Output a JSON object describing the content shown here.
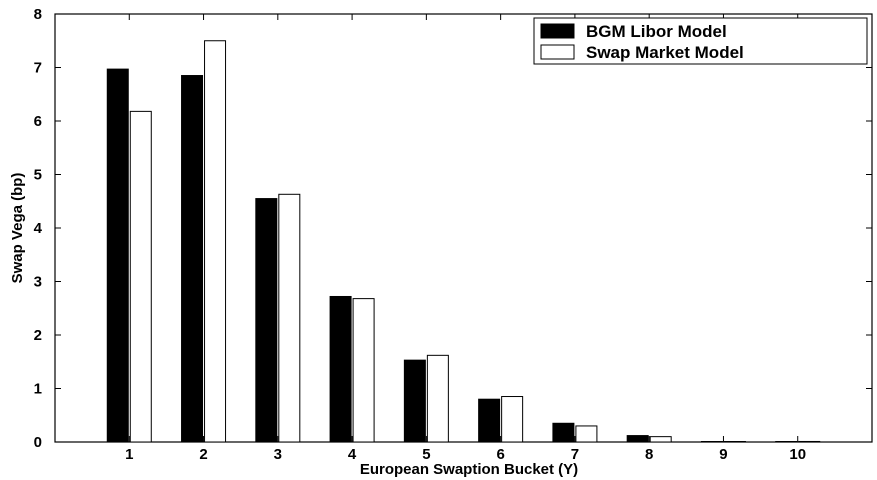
{
  "chart_data": {
    "type": "bar",
    "title": "",
    "xlabel": "European Swaption Bucket (Y)",
    "ylabel": "Swap Vega (bp)",
    "categories": [
      "1",
      "2",
      "3",
      "4",
      "5",
      "6",
      "7",
      "8",
      "9",
      "10"
    ],
    "xlim": [
      0,
      11
    ],
    "ylim": [
      0,
      8
    ],
    "yticks": [
      "0",
      "1",
      "2",
      "3",
      "4",
      "5",
      "6",
      "7",
      "8"
    ],
    "grid": false,
    "legend_position": "top-right",
    "series": [
      {
        "name": "BGM Libor Model",
        "color": "#000000",
        "values": [
          6.97,
          6.85,
          4.55,
          2.72,
          1.53,
          0.8,
          0.35,
          0.12,
          0.0,
          0.0
        ]
      },
      {
        "name": "Swap Market Model",
        "color": "#ffffff",
        "values": [
          6.18,
          7.5,
          4.63,
          2.68,
          1.62,
          0.85,
          0.3,
          0.1,
          0.0,
          0.01
        ]
      }
    ]
  }
}
